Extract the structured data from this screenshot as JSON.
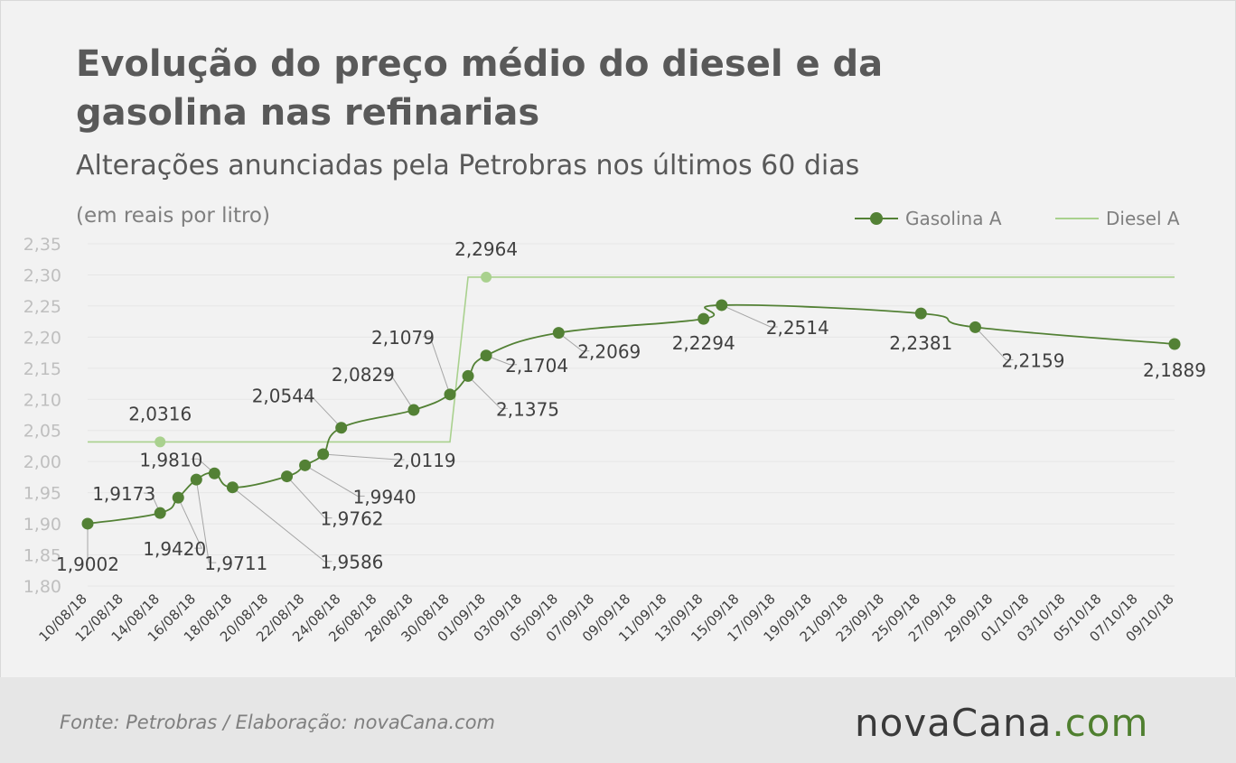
{
  "title": "Evolução do preço médio do diesel e da gasolina nas refinarias",
  "subtitle": "Alterações anunciadas pela Petrobras nos últimos 60 dias",
  "unit_label": "(em reais por litro)",
  "source": "Fonte:  Petrobras  / Elaboração:  novaCana.com",
  "logo": {
    "name": "nova",
    "accent": "Cana",
    "suffix": ".com"
  },
  "colors": {
    "gasolina": "#538135",
    "diesel": "#a9d18e",
    "axis_text": "#bfbfbf",
    "label_text": "#404040",
    "grid": "#e6e6e6"
  },
  "chart_data": {
    "type": "line",
    "ylim": [
      1.8,
      2.35
    ],
    "y_ticks": [
      "2,35",
      "2,30",
      "2,25",
      "2,20",
      "2,15",
      "2,10",
      "2,05",
      "2,00",
      "1,95",
      "1,90",
      "1,85",
      "1,80"
    ],
    "x_range": [
      "10/08/18",
      "09/10/18"
    ],
    "x_tick_labels": [
      "10/08/18",
      "12/08/18",
      "14/08/18",
      "16/08/18",
      "18/08/18",
      "20/08/18",
      "22/08/18",
      "24/08/18",
      "26/08/18",
      "28/08/18",
      "30/08/18",
      "01/09/18",
      "03/09/18",
      "05/09/18",
      "07/09/18",
      "09/09/18",
      "11/09/18",
      "13/09/18",
      "15/09/18",
      "17/09/18",
      "19/09/18",
      "21/09/18",
      "23/09/18",
      "25/09/18",
      "27/09/18",
      "29/09/18",
      "01/10/18",
      "03/10/18",
      "05/10/18",
      "07/10/18",
      "09/10/18"
    ],
    "grid": true,
    "legend_position": "top-right",
    "series": [
      {
        "name": "Gasolina A",
        "style": "smooth line with markers",
        "points": [
          {
            "x": "10/08/18",
            "y": 1.9002,
            "label": "1,9002"
          },
          {
            "x": "14/08/18",
            "y": 1.9173,
            "label": "1,9173"
          },
          {
            "x": "15/08/18",
            "y": 1.942,
            "label": "1,9420"
          },
          {
            "x": "16/08/18",
            "y": 1.9711,
            "label": "1,9711"
          },
          {
            "x": "17/08/18",
            "y": 1.981,
            "label": "1,9810"
          },
          {
            "x": "18/08/18",
            "y": 1.9586,
            "label": "1,9586"
          },
          {
            "x": "21/08/18",
            "y": 1.9762,
            "label": "1,9762"
          },
          {
            "x": "22/08/18",
            "y": 1.994,
            "label": "1,9940"
          },
          {
            "x": "23/08/18",
            "y": 2.0119,
            "label": "2,0119"
          },
          {
            "x": "24/08/18",
            "y": 2.0544,
            "label": "2,0544"
          },
          {
            "x": "28/08/18",
            "y": 2.0829,
            "label": "2,0829"
          },
          {
            "x": "30/08/18",
            "y": 2.1079,
            "label": "2,1079"
          },
          {
            "x": "31/08/18",
            "y": 2.1375,
            "label": "2,1375"
          },
          {
            "x": "01/09/18",
            "y": 2.1704,
            "label": "2,1704"
          },
          {
            "x": "05/09/18",
            "y": 2.2069,
            "label": "2,2069"
          },
          {
            "x": "13/09/18",
            "y": 2.2294,
            "label": "2,2294"
          },
          {
            "x": "14/09/18",
            "y": 2.2514,
            "label": "2,2514"
          },
          {
            "x": "25/09/18",
            "y": 2.2381,
            "label": "2,2381"
          },
          {
            "x": "28/09/18",
            "y": 2.2159,
            "label": "2,2159"
          },
          {
            "x": "09/10/18",
            "y": 2.1889,
            "label": "2,1889"
          }
        ]
      },
      {
        "name": "Diesel A",
        "style": "step line",
        "points": [
          {
            "x": "10/08/18",
            "y": 2.0316
          },
          {
            "x": "30/08/18",
            "y": 2.0316
          },
          {
            "x": "31/08/18",
            "y": 2.2964
          },
          {
            "x": "09/10/18",
            "y": 2.2964
          }
        ],
        "markers": [
          {
            "x": "14/08/18",
            "y": 2.0316,
            "label": "2,0316"
          },
          {
            "x": "01/09/18",
            "y": 2.2964,
            "label": "2,2964"
          }
        ]
      }
    ]
  }
}
